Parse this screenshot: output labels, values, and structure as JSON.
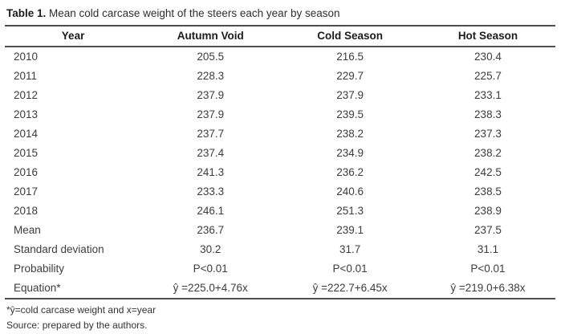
{
  "table": {
    "caption": {
      "label": "Table 1.",
      "text": " Mean cold carcase weight of the steers each year by season"
    },
    "columns": [
      "Year",
      "Autumn Void",
      "Cold Season",
      "Hot Season"
    ],
    "rows": [
      [
        "2010",
        "205.5",
        "216.5",
        "230.4"
      ],
      [
        "2011",
        "228.3",
        "229.7",
        "225.7"
      ],
      [
        "2012",
        "237.9",
        "237.9",
        "233.1"
      ],
      [
        "2013",
        "237.9",
        "239.5",
        "238.3"
      ],
      [
        "2014",
        "237.7",
        "238.2",
        "237.3"
      ],
      [
        "2015",
        "237.4",
        "234.9",
        "238.2"
      ],
      [
        "2016",
        "241.3",
        "236.2",
        "242.5"
      ],
      [
        "2017",
        "233.3",
        "240.6",
        "238.5"
      ],
      [
        "2018",
        "246.1",
        "251.3",
        "238.9"
      ],
      [
        "Mean",
        "236.7",
        "239.1",
        "237.5"
      ],
      [
        "Standard deviation",
        "30.2",
        "31.7",
        "31.1"
      ],
      [
        "Probability",
        "P<0.01",
        "P<0.01",
        "P<0.01"
      ],
      [
        "Equation*",
        "ŷ =225.0+4.76x",
        "ŷ =222.7+6.45x",
        "ŷ =219.0+6.38x"
      ]
    ],
    "footnotes": [
      "*ŷ=cold carcase weight and x=year",
      "Source: prepared by the authors."
    ],
    "colors": {
      "rule": "#4f4f4f",
      "header_text": "#1c1c1c",
      "body_text": "#3c3c3c"
    }
  }
}
